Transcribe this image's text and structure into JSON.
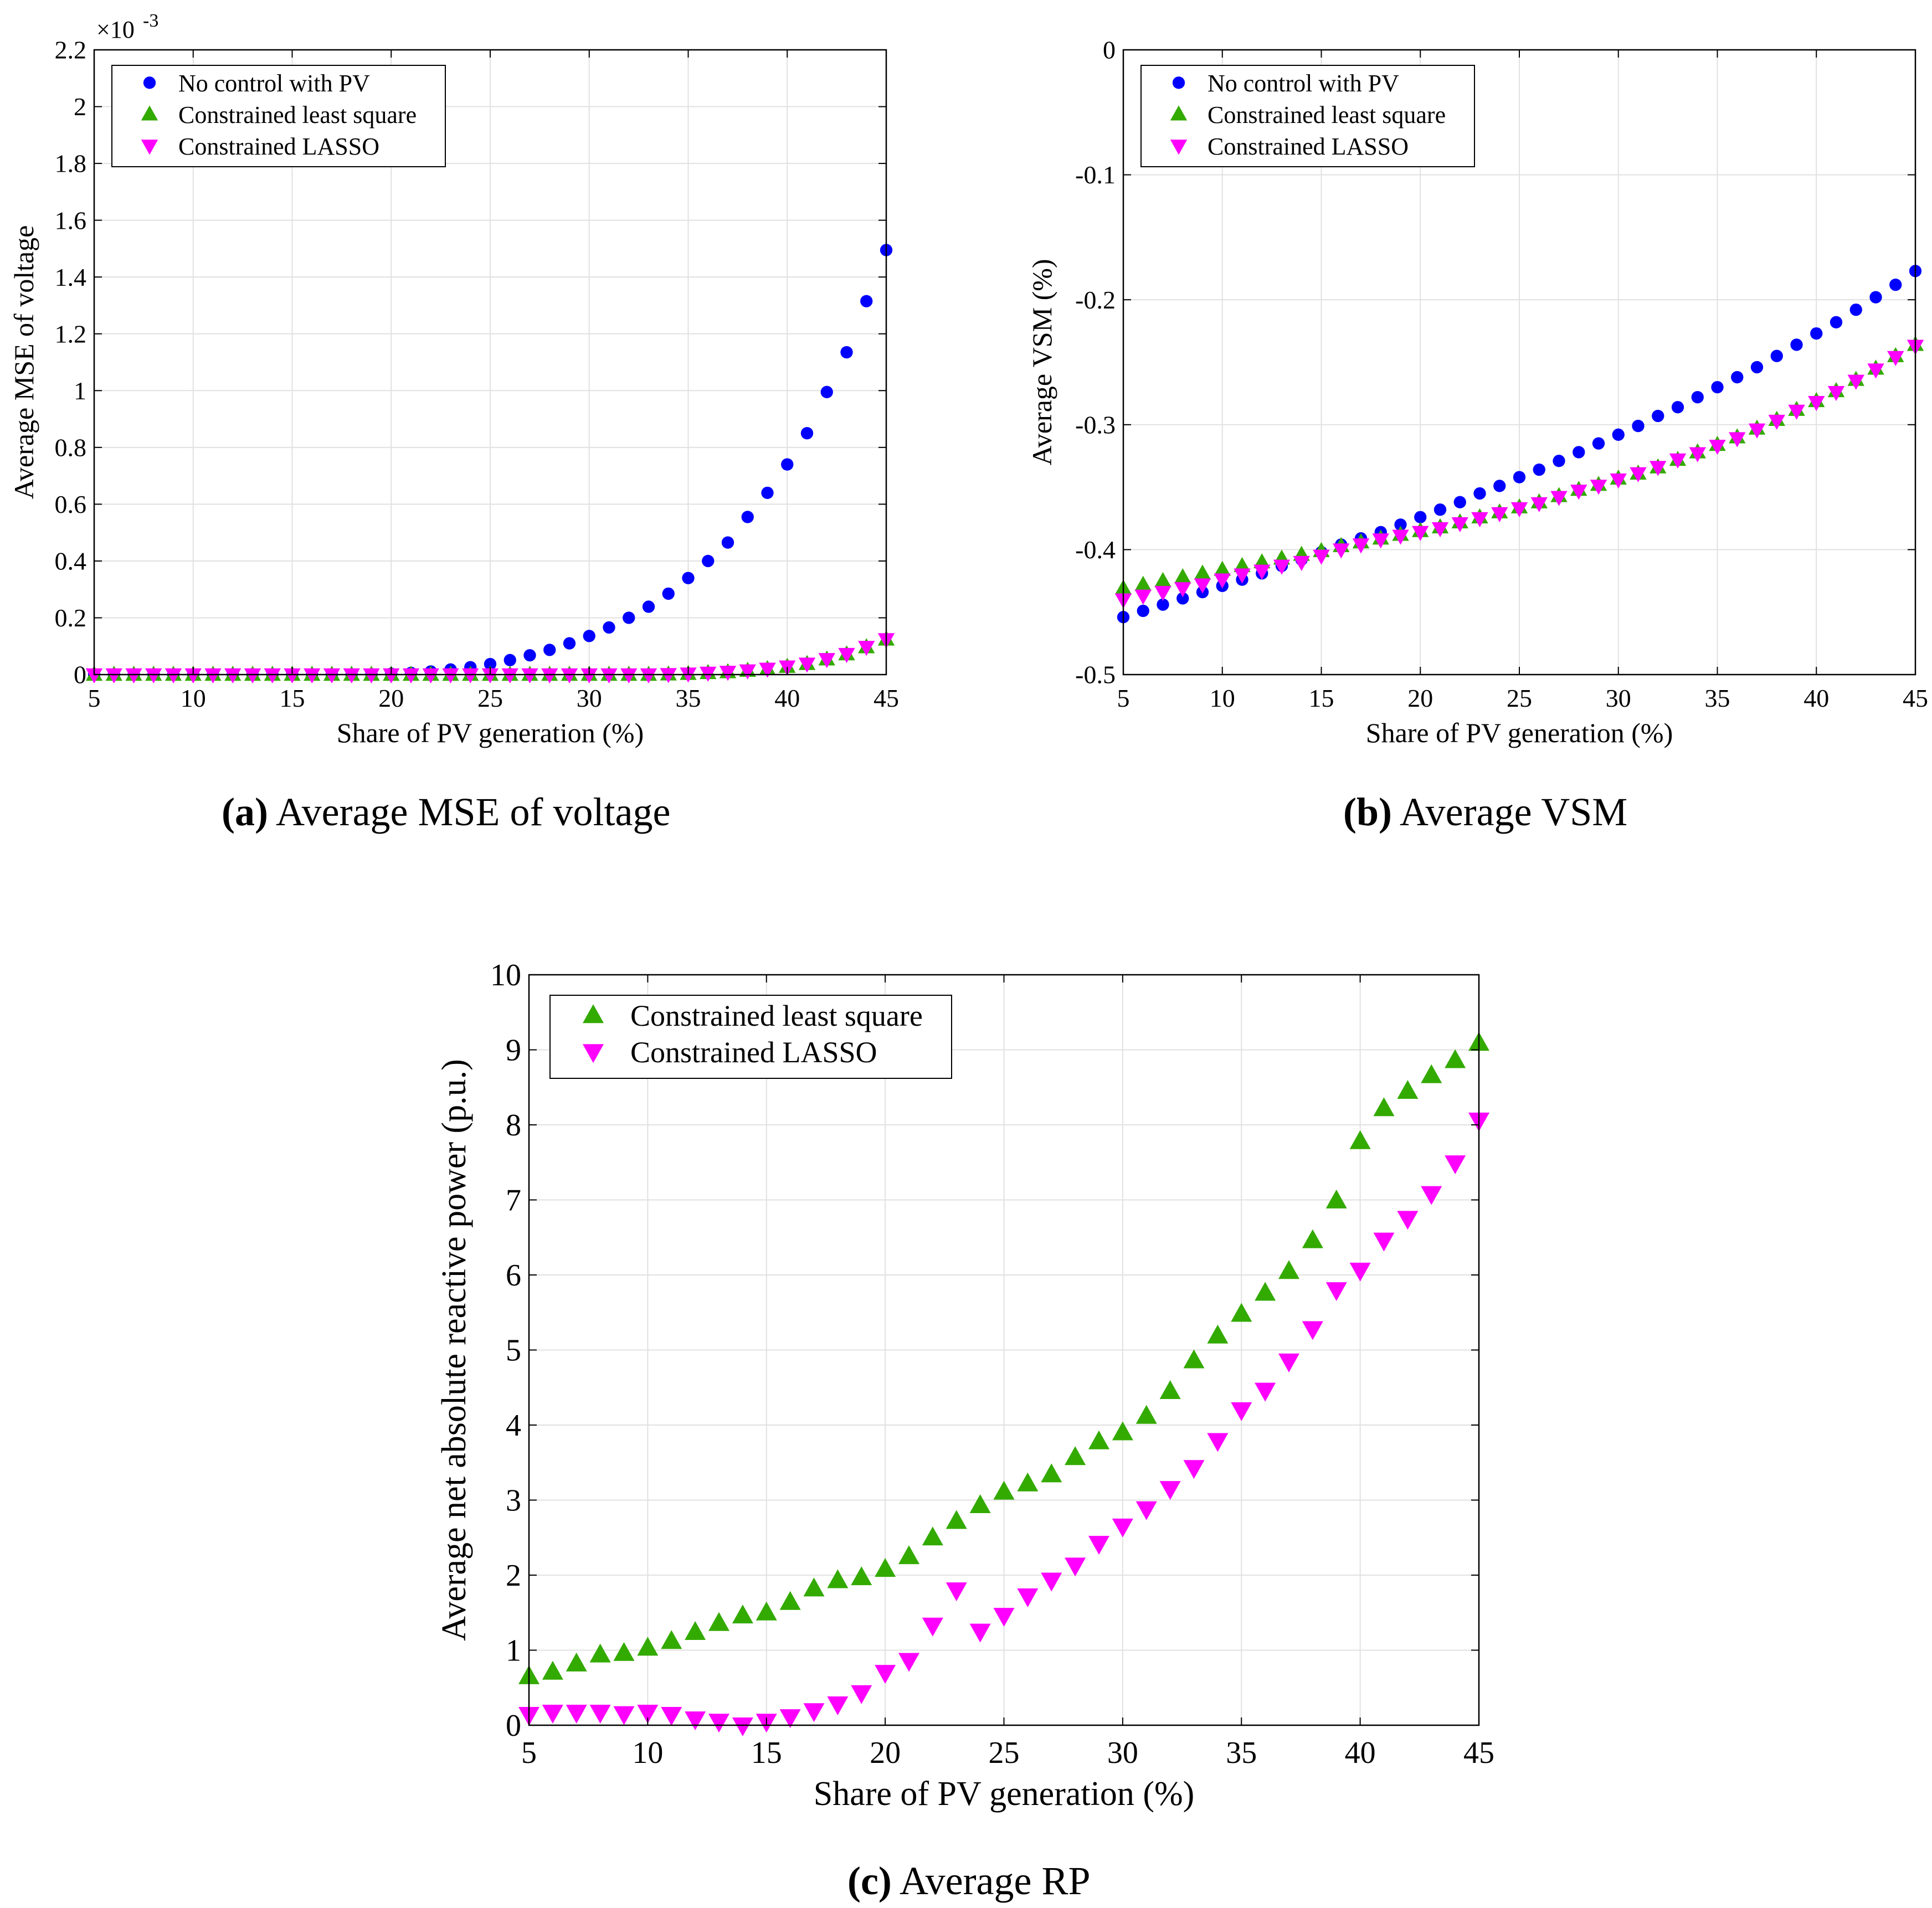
{
  "colors": {
    "no_control": "#0000ff",
    "least_square": "#33aa00",
    "lasso": "#ff00ff",
    "grid": "#e1e1e1",
    "axes": "#000000"
  },
  "captions": {
    "a": {
      "tag": "(a)",
      "text": "Average MSE of voltage"
    },
    "b": {
      "tag": "(b)",
      "text": "Average VSM"
    },
    "c": {
      "tag": "(c)",
      "text": "Average RP"
    }
  },
  "chart_data": [
    {
      "id": "a",
      "type": "scatter",
      "xlabel": "Share of PV generation (%)",
      "ylabel": "Average MSE of voltage",
      "exponent_label": "×10",
      "exponent_power": "-3",
      "xlim": [
        5,
        45
      ],
      "ylim": [
        0,
        2.2
      ],
      "xticks": [
        5,
        10,
        15,
        20,
        25,
        30,
        35,
        40,
        45
      ],
      "xtick_labels": [
        "5",
        "10",
        "15",
        "20",
        "25",
        "30",
        "35",
        "40",
        "45"
      ],
      "yticks": [
        0,
        0.2,
        0.4,
        0.6,
        0.8,
        1,
        1.2,
        1.4,
        1.6,
        1.8,
        2,
        2.2
      ],
      "ytick_labels": [
        "0",
        "0.2",
        "0.4",
        "0.6",
        "0.8",
        "1",
        "1.2",
        "1.4",
        "1.6",
        "1.8",
        "2",
        "2.2"
      ],
      "grid": true,
      "legend_position": "top-left",
      "x": [
        5,
        6,
        7,
        8,
        9,
        10,
        11,
        12,
        13,
        14,
        15,
        16,
        17,
        18,
        19,
        20,
        21,
        22,
        23,
        24,
        25,
        26,
        27,
        28,
        29,
        30,
        31,
        32,
        33,
        34,
        35,
        36,
        37,
        38,
        39,
        40,
        41,
        42,
        43,
        44,
        45
      ],
      "series": [
        {
          "name": "No control with PV",
          "marker": "circle",
          "color": "#0000ff",
          "values": [
            0,
            0,
            0,
            0,
            0,
            0,
            0,
            0,
            0,
            0,
            0,
            0,
            0,
            0,
            0.001,
            0.003,
            0.006,
            0.011,
            0.018,
            0.026,
            0.037,
            0.051,
            0.068,
            0.087,
            0.11,
            0.136,
            0.166,
            0.2,
            0.239,
            0.285,
            0.34,
            0.4,
            0.465,
            0.555,
            0.64,
            0.74,
            0.85,
            0.995,
            1.135,
            1.315,
            1.495
          ]
        },
        {
          "name": "Constrained least square",
          "marker": "triangle-up",
          "color": "#33aa00",
          "values": [
            0,
            0,
            0,
            0,
            0,
            0,
            0,
            0,
            0,
            0,
            0,
            0,
            0,
            0,
            0,
            0,
            0,
            0,
            0,
            0,
            0,
            0,
            0,
            0,
            0,
            0,
            0,
            0,
            0,
            0.001,
            0.003,
            0.006,
            0.009,
            0.014,
            0.02,
            0.028,
            0.038,
            0.054,
            0.072,
            0.097,
            0.124
          ]
        },
        {
          "name": "Constrained LASSO",
          "marker": "triangle-down",
          "color": "#ff00ff",
          "values": [
            0,
            0,
            0,
            0,
            0,
            0,
            0,
            0,
            0,
            0,
            0,
            0,
            0,
            0,
            0,
            0,
            0,
            0,
            0,
            0,
            0,
            0,
            0,
            0,
            0,
            0,
            0,
            0,
            0,
            0.001,
            0.003,
            0.006,
            0.009,
            0.014,
            0.02,
            0.028,
            0.038,
            0.054,
            0.072,
            0.097,
            0.124
          ]
        }
      ]
    },
    {
      "id": "b",
      "type": "scatter",
      "xlabel": "Share of PV generation (%)",
      "ylabel": "Average VSM (%)",
      "xlim": [
        5,
        45
      ],
      "ylim": [
        -0.5,
        0
      ],
      "xticks": [
        5,
        10,
        15,
        20,
        25,
        30,
        35,
        40,
        45
      ],
      "xtick_labels": [
        "5",
        "10",
        "15",
        "20",
        "25",
        "30",
        "35",
        "40",
        "45"
      ],
      "yticks": [
        -0.5,
        -0.4,
        -0.3,
        -0.2,
        -0.1,
        0
      ],
      "ytick_labels": [
        "-0.5",
        "-0.4",
        "-0.3",
        "-0.2",
        "-0.1",
        "0"
      ],
      "grid": true,
      "legend_position": "top-left",
      "x": [
        5,
        6,
        7,
        8,
        9,
        10,
        11,
        12,
        13,
        14,
        15,
        16,
        17,
        18,
        19,
        20,
        21,
        22,
        23,
        24,
        25,
        26,
        27,
        28,
        29,
        30,
        31,
        32,
        33,
        34,
        35,
        36,
        37,
        38,
        39,
        40,
        41,
        42,
        43,
        44,
        45
      ],
      "series": [
        {
          "name": "No control with PV",
          "marker": "circle",
          "color": "#0000ff",
          "values": [
            -0.454,
            -0.449,
            -0.444,
            -0.439,
            -0.434,
            -0.429,
            -0.424,
            -0.419,
            -0.413,
            -0.408,
            -0.402,
            -0.396,
            -0.391,
            -0.386,
            -0.38,
            -0.374,
            -0.368,
            -0.362,
            -0.355,
            -0.349,
            -0.342,
            -0.336,
            -0.329,
            -0.322,
            -0.315,
            -0.308,
            -0.301,
            -0.293,
            -0.286,
            -0.278,
            -0.27,
            -0.262,
            -0.254,
            -0.245,
            -0.236,
            -0.227,
            -0.218,
            -0.208,
            -0.198,
            -0.188,
            -0.177
          ]
        },
        {
          "name": "Constrained least square",
          "marker": "triangle-up",
          "color": "#33aa00",
          "values": [
            -0.431,
            -0.428,
            -0.425,
            -0.422,
            -0.419,
            -0.416,
            -0.413,
            -0.41,
            -0.407,
            -0.404,
            -0.401,
            -0.397,
            -0.394,
            -0.391,
            -0.388,
            -0.385,
            -0.382,
            -0.378,
            -0.374,
            -0.37,
            -0.366,
            -0.362,
            -0.357,
            -0.352,
            -0.348,
            -0.343,
            -0.339,
            -0.334,
            -0.328,
            -0.322,
            -0.316,
            -0.31,
            -0.303,
            -0.296,
            -0.288,
            -0.281,
            -0.273,
            -0.264,
            -0.255,
            -0.245,
            -0.236
          ]
        },
        {
          "name": "Constrained LASSO",
          "marker": "triangle-down",
          "color": "#ff00ff",
          "values": [
            -0.44,
            -0.437,
            -0.434,
            -0.431,
            -0.428,
            -0.424,
            -0.42,
            -0.417,
            -0.413,
            -0.41,
            -0.405,
            -0.4,
            -0.396,
            -0.392,
            -0.389,
            -0.386,
            -0.383,
            -0.379,
            -0.375,
            -0.371,
            -0.367,
            -0.363,
            -0.358,
            -0.353,
            -0.349,
            -0.344,
            -0.339,
            -0.334,
            -0.328,
            -0.323,
            -0.317,
            -0.311,
            -0.304,
            -0.297,
            -0.289,
            -0.282,
            -0.274,
            -0.265,
            -0.256,
            -0.246,
            -0.237
          ]
        }
      ]
    },
    {
      "id": "c",
      "type": "scatter",
      "xlabel": "Share of PV generation (%)",
      "ylabel": "Average net absolute reactive power (p.u.)",
      "xlim": [
        5,
        45
      ],
      "ylim": [
        0,
        10
      ],
      "xticks": [
        5,
        10,
        15,
        20,
        25,
        30,
        35,
        40,
        45
      ],
      "xtick_labels": [
        "5",
        "10",
        "15",
        "20",
        "25",
        "30",
        "35",
        "40",
        "45"
      ],
      "yticks": [
        0,
        1,
        2,
        3,
        4,
        5,
        6,
        7,
        8,
        9,
        10
      ],
      "ytick_labels": [
        "0",
        "1",
        "2",
        "3",
        "4",
        "5",
        "6",
        "7",
        "8",
        "9",
        "10"
      ],
      "grid": true,
      "legend_position": "top-left",
      "x": [
        5,
        6,
        7,
        8,
        9,
        10,
        11,
        12,
        13,
        14,
        15,
        16,
        17,
        18,
        19,
        20,
        21,
        22,
        23,
        24,
        25,
        26,
        27,
        28,
        29,
        30,
        31,
        32,
        33,
        34,
        35,
        36,
        37,
        38,
        39,
        40,
        41,
        42,
        43,
        44,
        45
      ],
      "series": [
        {
          "name": "Constrained least square",
          "marker": "triangle-up",
          "color": "#33aa00",
          "values": [
            0.65,
            0.71,
            0.82,
            0.94,
            0.96,
            1.03,
            1.12,
            1.24,
            1.36,
            1.46,
            1.5,
            1.64,
            1.82,
            1.93,
            1.97,
            2.08,
            2.25,
            2.5,
            2.72,
            2.93,
            3.11,
            3.22,
            3.34,
            3.57,
            3.78,
            3.9,
            4.12,
            4.45,
            4.86,
            5.19,
            5.48,
            5.76,
            6.05,
            6.46,
            6.99,
            7.78,
            8.22,
            8.45,
            8.66,
            8.86,
            9.09
          ]
        },
        {
          "name": "Constrained LASSO",
          "marker": "triangle-down",
          "color": "#ff00ff",
          "values": [
            0.14,
            0.17,
            0.17,
            0.17,
            0.15,
            0.17,
            0.14,
            0.08,
            0.05,
            0.0,
            0.05,
            0.11,
            0.19,
            0.28,
            0.43,
            0.7,
            0.86,
            1.33,
            1.8,
            1.25,
            1.46,
            1.72,
            1.93,
            2.13,
            2.42,
            2.65,
            2.88,
            3.15,
            3.43,
            3.79,
            4.2,
            4.46,
            4.85,
            5.28,
            5.8,
            6.06,
            6.46,
            6.75,
            7.08,
            7.49,
            8.06
          ]
        }
      ]
    }
  ]
}
